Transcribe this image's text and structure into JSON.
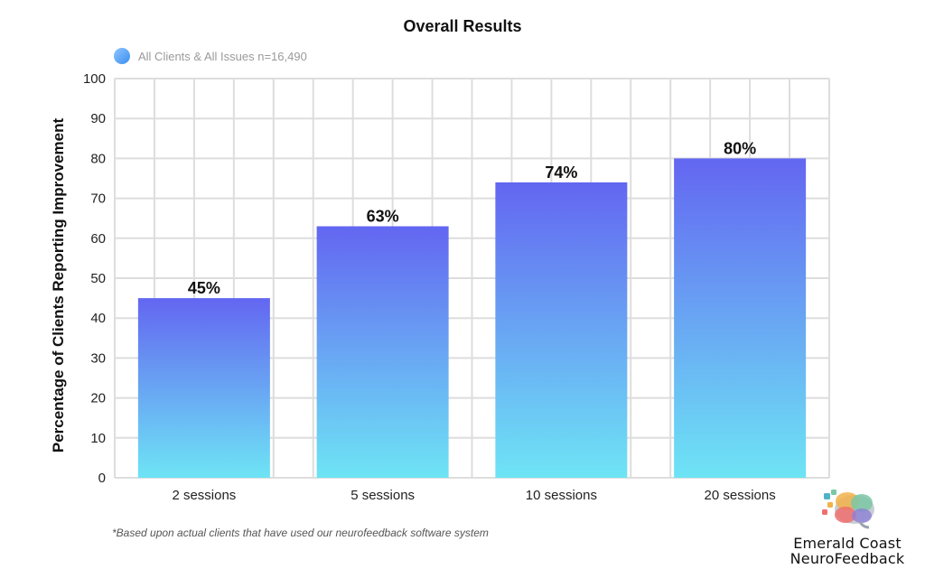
{
  "chart_data": {
    "type": "bar",
    "title": "Overall Results",
    "ylabel": "Percentage of Clients Reporting Improvement",
    "xlabel": "",
    "categories": [
      "2 sessions",
      "5 sessions",
      "10 sessions",
      "20 sessions"
    ],
    "series": [
      {
        "name": "All Clients & All Issues n=16,490",
        "values": [
          45,
          63,
          74,
          80
        ],
        "data_labels": [
          "45%",
          "63%",
          "74%",
          "80%"
        ]
      }
    ],
    "ylim": [
      0,
      100
    ],
    "yticks": [
      "0",
      "10",
      "20",
      "30",
      "40",
      "50",
      "60",
      "70",
      "80",
      "90",
      "100"
    ],
    "grid": true,
    "legend_position": "top-left",
    "colors": {
      "bar_top": "#6366F1",
      "bar_bottom": "#6EE4F5",
      "legend_dot": "#60A5FA",
      "grid": "#dddddd"
    }
  },
  "footnote": "*Based upon actual clients that have used our neurofeedback software system",
  "logo": {
    "line1": "Emerald Coast",
    "line2": "NeuroFeedback",
    "icon": "brain-puzzle-icon"
  }
}
